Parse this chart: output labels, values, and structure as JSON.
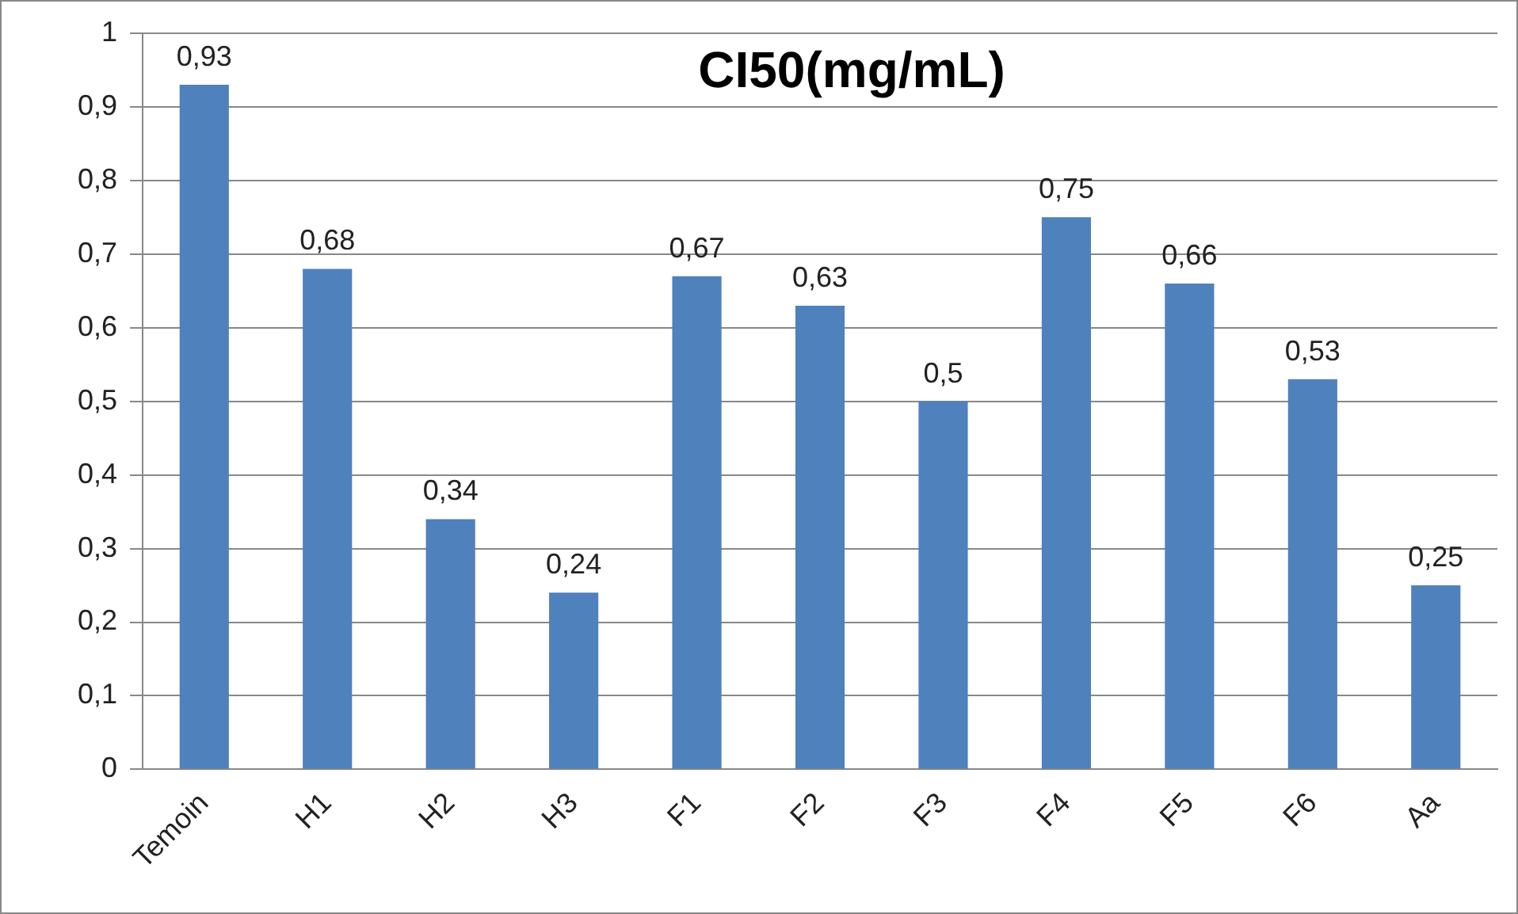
{
  "chart_data": {
    "type": "bar",
    "title": "CI50(mg/mL)",
    "categories": [
      "Temoin",
      "H1",
      "H2",
      "H3",
      "F1",
      "F2",
      "F3",
      "F4",
      "F5",
      "F6",
      "Aa"
    ],
    "values": [
      0.93,
      0.68,
      0.34,
      0.24,
      0.67,
      0.63,
      0.5,
      0.75,
      0.66,
      0.53,
      0.25
    ],
    "value_labels": [
      "0,93",
      "0,68",
      "0,34",
      "0,24",
      "0,67",
      "0,63",
      "0,5",
      "0,75",
      "0,66",
      "0,53",
      "0,25"
    ],
    "color": "#4f81bd",
    "ylim": [
      0,
      1
    ],
    "yticks": [
      {
        "value": 0,
        "label": "0"
      },
      {
        "value": 0.1,
        "label": "0,1"
      },
      {
        "value": 0.2,
        "label": "0,2"
      },
      {
        "value": 0.3,
        "label": "0,3"
      },
      {
        "value": 0.4,
        "label": "0,4"
      },
      {
        "value": 0.5,
        "label": "0,5"
      },
      {
        "value": 0.6,
        "label": "0,6"
      },
      {
        "value": 0.7,
        "label": "0,7"
      },
      {
        "value": 0.8,
        "label": "0,8"
      },
      {
        "value": 0.9,
        "label": "0,9"
      },
      {
        "value": 1,
        "label": "1"
      }
    ],
    "grid": "y"
  }
}
